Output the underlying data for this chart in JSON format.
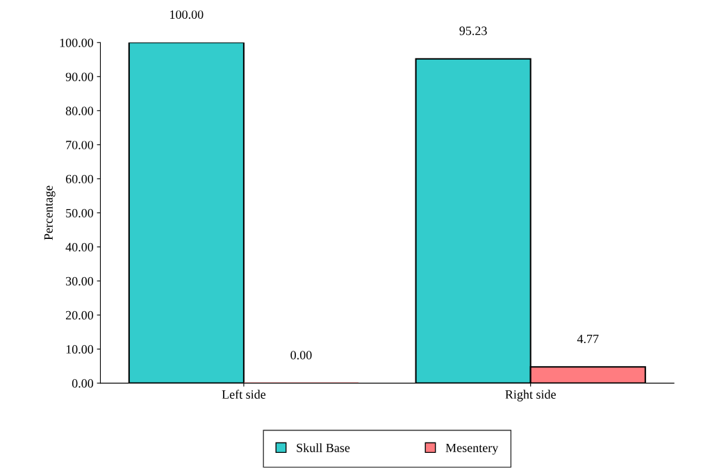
{
  "chart_data": {
    "type": "bar",
    "ylabel": "Percentage",
    "categories": [
      "Left side",
      "Right side"
    ],
    "series": [
      {
        "name": "Skull Base",
        "color": "#33cccc",
        "values": [
          100.0,
          95.23
        ],
        "value_labels": [
          "100.00",
          "95.23"
        ]
      },
      {
        "name": "Mesentery",
        "color": "#ff7c80",
        "values": [
          0.0,
          4.77
        ],
        "value_labels": [
          "0.00",
          "4.77"
        ]
      }
    ],
    "ylim": [
      0,
      100
    ],
    "yticks": [
      {
        "value": 0,
        "label": "0.00"
      },
      {
        "value": 10,
        "label": "10.00"
      },
      {
        "value": 20,
        "label": "20.00"
      },
      {
        "value": 30,
        "label": "30.00"
      },
      {
        "value": 40,
        "label": "40.00"
      },
      {
        "value": 50,
        "label": "50.00"
      },
      {
        "value": 60,
        "label": "60.00"
      },
      {
        "value": 70,
        "label": "70.00"
      },
      {
        "value": 80,
        "label": "80.00"
      },
      {
        "value": 90,
        "label": "90.00"
      },
      {
        "value": 100,
        "label": "100.00"
      }
    ],
    "grid": false,
    "legend": "bottom"
  }
}
